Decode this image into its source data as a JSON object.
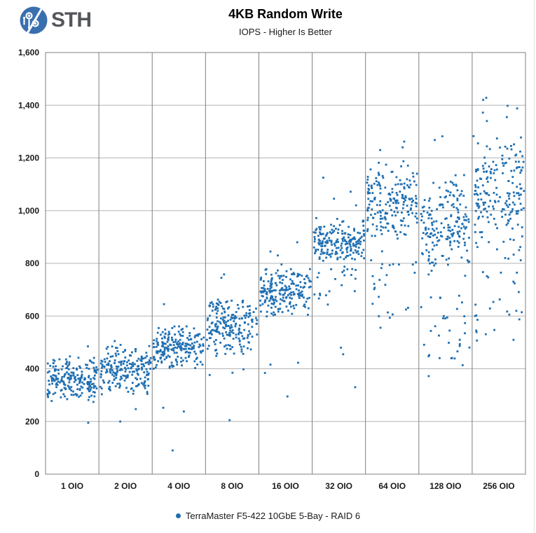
{
  "header": {
    "logo_text": "STH",
    "title": "4KB Random Write",
    "subtitle": "IOPS - Higher Is Better"
  },
  "colors": {
    "point": "#1e6fb2",
    "h_gridline": "#b3b3b3",
    "v_gridline_border": "#7f7f7f",
    "axis_text": "#1a1a1a",
    "logo_circle": "#3a6fae",
    "logo_text": "#55565a"
  },
  "chart_data": {
    "type": "scatter",
    "title": "4KB Random Write",
    "subtitle": "IOPS - Higher Is Better",
    "xlabel": "",
    "ylabel": "",
    "ylim": [
      0,
      1600
    ],
    "ytick_step": 200,
    "ytick_labels": [
      "0",
      "200",
      "400",
      "600",
      "800",
      "1,000",
      "1,200",
      "1,400",
      "1,600"
    ],
    "grid": true,
    "legend_position": "bottom",
    "categories": [
      "1 OIO",
      "2 OIO",
      "4 OIO",
      "8 OIO",
      "16 OIO",
      "32 OIO",
      "64 OIO",
      "128 OIO",
      "256 OIO"
    ],
    "series": [
      {
        "name": "TerraMaster F5-422 10GbE 5-Bay - RAID 6",
        "color": "#1e6fb2",
        "marker": "small-square",
        "clusters": [
          {
            "category": "1 OIO",
            "n_dense": 200,
            "dense_range": [
              265,
              465
            ],
            "tail_n": 0,
            "tail_range": [
              0,
              0
            ],
            "outliers": [
              485,
              195
            ]
          },
          {
            "category": "2 OIO",
            "n_dense": 200,
            "dense_range": [
              295,
              500
            ],
            "tail_n": 0,
            "tail_range": [
              0,
              0
            ],
            "outliers": [
              505,
              247,
              200
            ]
          },
          {
            "category": "4 OIO",
            "n_dense": 200,
            "dense_range": [
              395,
              578
            ],
            "tail_n": 0,
            "tail_range": [
              0,
              0
            ],
            "outliers": [
              645,
              252,
              238,
              90
            ]
          },
          {
            "category": "8 OIO",
            "n_dense": 200,
            "dense_range": [
              435,
              690
            ],
            "tail_n": 3,
            "tail_range": [
              330,
              400
            ],
            "outliers": [
              758,
              745,
              205
            ]
          },
          {
            "category": "16 OIO",
            "n_dense": 200,
            "dense_range": [
              590,
              800
            ],
            "tail_n": 3,
            "tail_range": [
              380,
              470
            ],
            "outliers": [
              880,
              845,
              830,
              295
            ]
          },
          {
            "category": "32 OIO",
            "n_dense": 190,
            "dense_range": [
              790,
              980
            ],
            "tail_n": 22,
            "tail_range": [
              615,
              790
            ],
            "outliers": [
              1125,
              1072,
              1045,
              1020,
              480,
              455,
              330
            ]
          },
          {
            "category": "64 OIO",
            "n_dense": 190,
            "dense_range": [
              875,
              1195
            ],
            "tail_n": 26,
            "tail_range": [
              555,
              875
            ],
            "outliers": [
              1262,
              1240,
              1230
            ]
          },
          {
            "category": "128 OIO",
            "n_dense": 180,
            "dense_range": [
              730,
              1165
            ],
            "tail_n": 32,
            "tail_range": [
              400,
              730
            ],
            "outliers": [
              1282,
              1268,
              372
            ]
          },
          {
            "category": "256 OIO",
            "n_dense": 180,
            "dense_range": [
              840,
              1300
            ],
            "tail_n": 30,
            "tail_range": [
              500,
              840
            ],
            "outliers": [
              1428,
              1420,
              1398,
              1388,
              1372,
              1355,
              1340
            ]
          }
        ]
      }
    ]
  }
}
